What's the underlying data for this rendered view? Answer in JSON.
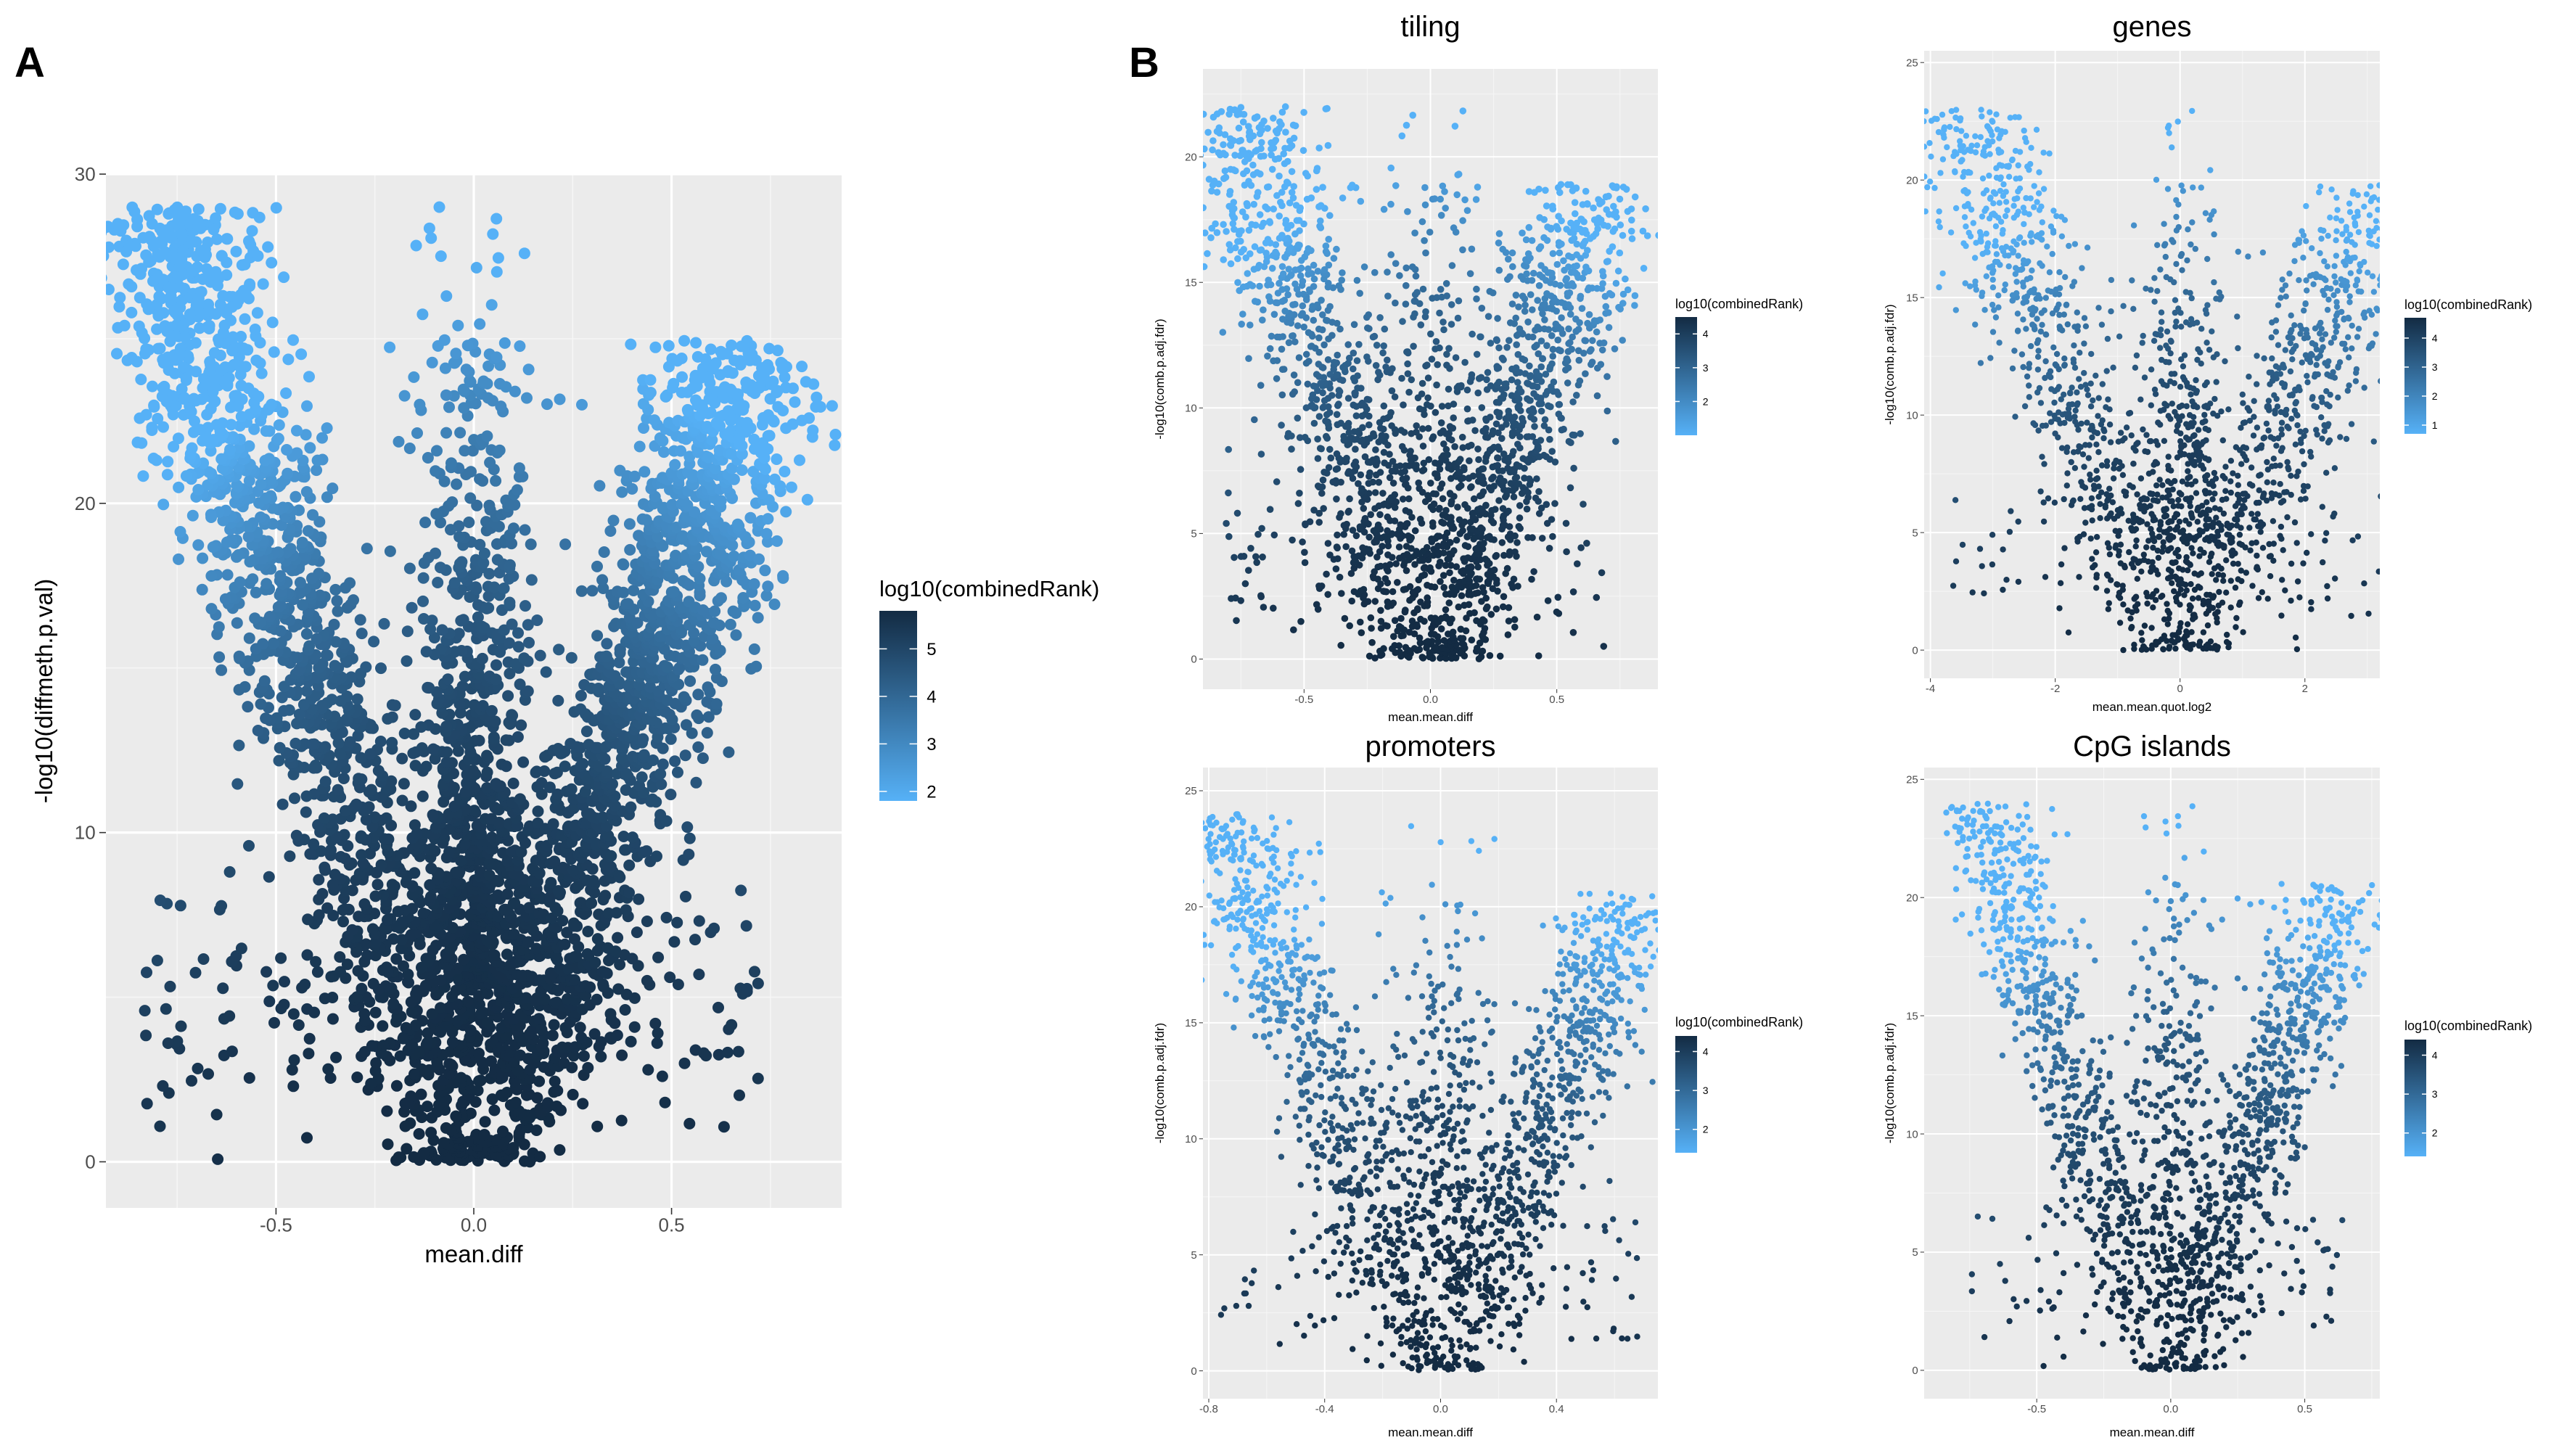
{
  "panels": {
    "a_label": "A",
    "b_label": "B"
  },
  "colors": {
    "panel_bg": "#ebebeb",
    "grid_major": "#ffffff",
    "low": "#56B1F7",
    "high": "#132B43"
  },
  "chart_data": [
    {
      "id": "A",
      "type": "scatter",
      "title": "",
      "xlabel": "mean.diff",
      "ylabel": "-log10(diffmeth.p.val)",
      "xlim": [
        -0.93,
        0.93
      ],
      "ylim": [
        -1.4,
        30
      ],
      "xticks": [
        -0.5,
        0.0,
        0.5
      ],
      "xtick_labels": [
        "-0.5",
        "0.0",
        "0.5"
      ],
      "yticks": [
        0,
        10,
        20,
        30
      ],
      "ytick_labels": [
        "0",
        "10",
        "20",
        "30"
      ],
      "shape": {
        "a": 29.0,
        "tip": 0.8,
        "arm": 0.22,
        "core": 0.08,
        "uplift": 0.1,
        "outer": 0.08
      },
      "n_points": 4200,
      "point_size": "large",
      "legend": {
        "title": "log10(combinedRank)",
        "range": [
          1.8,
          5.8
        ],
        "ticks": [
          2,
          3,
          4,
          5
        ],
        "tick_labels": [
          "2",
          "3",
          "4",
          "5"
        ]
      }
    },
    {
      "id": "B-tiling",
      "type": "scatter",
      "title": "tiling",
      "xlabel": "mean.mean.diff",
      "ylabel": "-log10(comb.p.adj.fdr)",
      "xlim": [
        -0.9,
        0.9
      ],
      "ylim": [
        -1.2,
        23.5
      ],
      "xticks": [
        -0.5,
        0.0,
        0.5
      ],
      "xtick_labels": [
        "-0.5",
        "0.0",
        "0.5"
      ],
      "yticks": [
        0,
        5,
        10,
        15,
        20
      ],
      "ytick_labels": [
        "0",
        "5",
        "10",
        "15",
        "20"
      ],
      "shape": {
        "a": 22.0,
        "tip": 0.78,
        "arm": 0.26,
        "core": 0.2,
        "uplift": 1.0,
        "outer": 0.05
      },
      "n_points": 2200,
      "point_size": "medium",
      "legend": {
        "title": "log10(combinedRank)",
        "range": [
          1.0,
          4.5
        ],
        "ticks": [
          2,
          3,
          4
        ],
        "tick_labels": [
          "2",
          "3",
          "4"
        ]
      }
    },
    {
      "id": "B-genes",
      "type": "scatter",
      "title": "genes",
      "xlabel": "mean.mean.quot.log2",
      "ylabel": "-log10(comb.p.adj.fdr)",
      "xlim": [
        -4.1,
        3.2
      ],
      "ylim": [
        -1.2,
        25.5
      ],
      "xticks": [
        -4,
        -2,
        0,
        2
      ],
      "xtick_labels": [
        "-4",
        "-2",
        "0",
        "2"
      ],
      "yticks": [
        0,
        5,
        10,
        15,
        20,
        25
      ],
      "ytick_labels": [
        "0",
        "5",
        "10",
        "15",
        "20",
        "25"
      ],
      "shape": {
        "a": 23.0,
        "tip": 3.6,
        "arm": 1.2,
        "core": 0.35,
        "uplift": 0.5,
        "outer": 0.3
      },
      "n_points": 1900,
      "point_size": "small",
      "legend": {
        "title": "log10(combinedRank)",
        "range": [
          0.7,
          4.7
        ],
        "ticks": [
          1,
          2,
          3,
          4
        ],
        "tick_labels": [
          "1",
          "2",
          "3",
          "4"
        ]
      }
    },
    {
      "id": "B-promoters",
      "type": "scatter",
      "title": "promoters",
      "xlabel": "mean.mean.diff",
      "ylabel": "-log10(comb.p.adj.fdr)",
      "xlim": [
        -0.82,
        0.75
      ],
      "ylim": [
        -1.2,
        26
      ],
      "xticks": [
        -0.8,
        -0.4,
        0.0,
        0.4
      ],
      "xtick_labels": [
        "-0.8",
        "-0.4",
        "0.0",
        "0.4"
      ],
      "yticks": [
        0,
        5,
        10,
        15,
        20,
        25
      ],
      "ytick_labels": [
        "0",
        "5",
        "10",
        "15",
        "20",
        "25"
      ],
      "shape": {
        "a": 24.0,
        "tip": 0.76,
        "arm": 0.2,
        "core": 0.12,
        "uplift": 0.5,
        "outer": 0.06
      },
      "n_points": 1900,
      "point_size": "small",
      "legend": {
        "title": "log10(combinedRank)",
        "range": [
          1.4,
          4.4
        ],
        "ticks": [
          2,
          3,
          4
        ],
        "tick_labels": [
          "2",
          "3",
          "4"
        ]
      }
    },
    {
      "id": "B-cpg",
      "type": "scatter",
      "title": "CpG islands",
      "xlabel": "mean.mean.diff",
      "ylabel": "-log10(comb.p.adj.fdr)",
      "xlim": [
        -0.92,
        0.78
      ],
      "ylim": [
        -1.2,
        25.5
      ],
      "xticks": [
        -0.5,
        0.0,
        0.5
      ],
      "xtick_labels": [
        "-0.5",
        "0.0",
        "0.5"
      ],
      "yticks": [
        0,
        5,
        10,
        15,
        20,
        25
      ],
      "ytick_labels": [
        "0",
        "5",
        "10",
        "15",
        "20",
        "25"
      ],
      "shape": {
        "a": 24.0,
        "tip": 0.72,
        "arm": 0.18,
        "core": 0.1,
        "uplift": 0.4,
        "outer": 0.05
      },
      "n_points": 1800,
      "point_size": "small",
      "legend": {
        "title": "log10(combinedRank)",
        "range": [
          1.4,
          4.4
        ],
        "ticks": [
          2,
          3,
          4
        ],
        "tick_labels": [
          "2",
          "3",
          "4"
        ]
      }
    }
  ]
}
